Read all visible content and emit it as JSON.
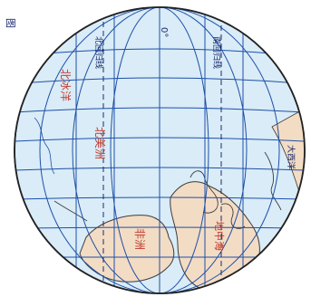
{
  "map": {
    "colors": {
      "ocean": "#d9ecf7",
      "land": "#f3dcc4",
      "grid": "#1f4fa8",
      "coast": "#3b3b3b",
      "text_dark": "#1a2a6c",
      "text_red": "#c0392b"
    },
    "labels": {
      "top_meridian": "0°",
      "tropic_north": "北回归线",
      "tropic_south": "南回归线",
      "sub_arctic_belt": "北极圈",
      "region_left_main": "北美洲",
      "region_left_belt": "北冰洋",
      "continent_bottom": "非洲",
      "sea_right": "地中海",
      "corner_top": "图",
      "ocean_right_edge": "大西洋"
    }
  }
}
